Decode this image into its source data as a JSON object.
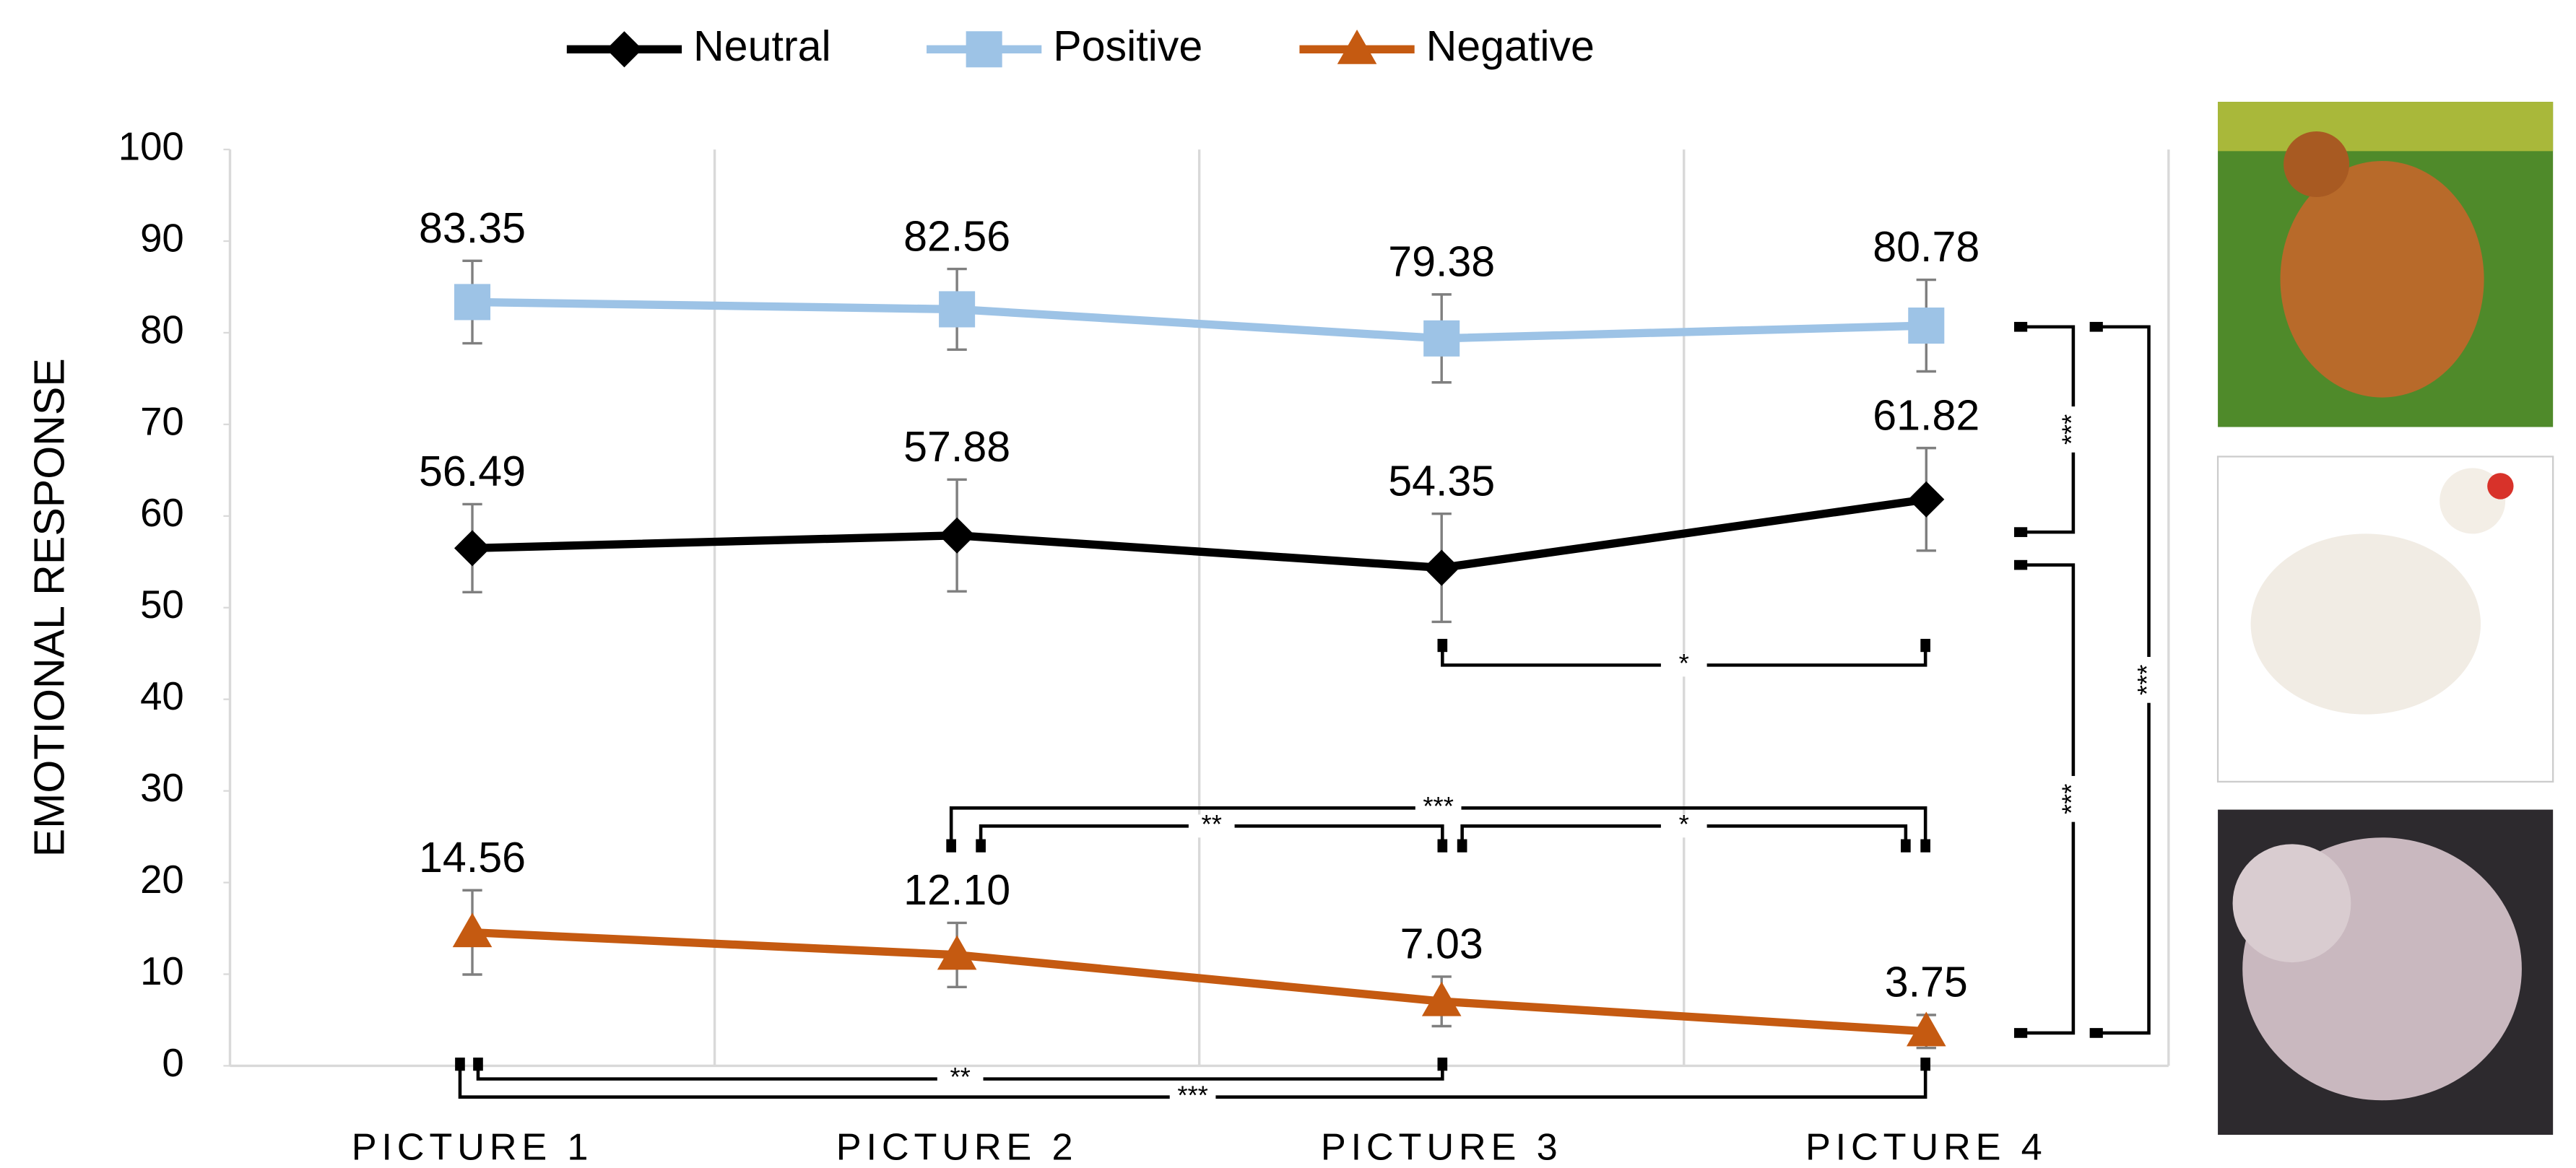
{
  "chart_data": {
    "type": "line",
    "y_label": "EMOTIONAL RESPONSE",
    "categories": [
      "PICTURE 1",
      "PICTURE 2",
      "PICTURE 3",
      "PICTURE 4"
    ],
    "series": [
      {
        "name": "Neutral",
        "color": "#000000",
        "marker": "diamond",
        "values": [
          56.49,
          57.88,
          54.35,
          61.82
        ],
        "value_labels": [
          "56.49",
          "57.88",
          "54.35",
          "61.82"
        ],
        "errors": [
          4.8,
          6.1,
          5.9,
          5.6
        ]
      },
      {
        "name": "Positive",
        "color": "#9dc3e6",
        "marker": "square",
        "values": [
          83.35,
          82.56,
          79.38,
          80.78
        ],
        "value_labels": [
          "83.35",
          "82.56",
          "79.38",
          "80.78"
        ],
        "errors": [
          4.5,
          4.4,
          4.8,
          5.0
        ]
      },
      {
        "name": "Negative",
        "color": "#c55a11",
        "marker": "triangle",
        "values": [
          14.56,
          12.1,
          7.03,
          3.75
        ],
        "value_labels": [
          "14.56",
          "12.10",
          "7.03",
          "3.75"
        ],
        "errors": [
          4.6,
          3.5,
          2.7,
          1.8
        ]
      }
    ],
    "ylim": [
      0,
      100
    ],
    "yticks": [
      0,
      10,
      20,
      30,
      40,
      50,
      60,
      70,
      80,
      90,
      100
    ],
    "grid": true,
    "legend": "top",
    "annotations": [
      "*",
      "**",
      "***",
      "*",
      "**",
      "***",
      "***",
      "***",
      "***"
    ]
  }
}
